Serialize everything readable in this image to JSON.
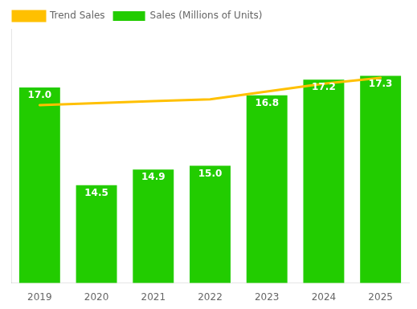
{
  "chart_data": {
    "type": "bar",
    "categories": [
      "2019",
      "2020",
      "2021",
      "2022",
      "2023",
      "2024",
      "2025"
    ],
    "series": [
      {
        "name": "Sales (Millions of Units)",
        "type": "bar",
        "color": "#22CC00",
        "values": [
          17.0,
          14.5,
          14.9,
          15.0,
          16.8,
          17.2,
          17.3
        ],
        "value_labels": [
          "17.0",
          "14.5",
          "14.9",
          "15.0",
          "16.8",
          "17.2",
          "17.3"
        ],
        "data_labels": true
      },
      {
        "name": "Trend Sales",
        "type": "line",
        "color": "#FFC000",
        "values": [
          16.55,
          16.6,
          16.65,
          16.7,
          16.9,
          17.1,
          17.25
        ]
      }
    ],
    "ylim": [
      12.0,
      18.5
    ],
    "legend": "upper left",
    "tick_labels": "x",
    "grid": false
  }
}
